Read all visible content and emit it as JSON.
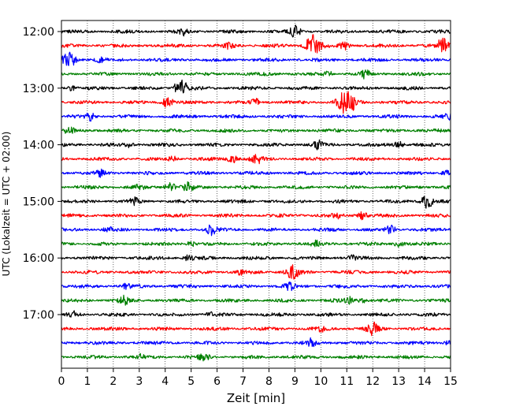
{
  "chart_data": {
    "type": "line",
    "title": "",
    "xlabel": "Zeit  [min]",
    "ylabel": "UTC (Lokalzeit = UTC + 02:00)",
    "xlim": [
      0,
      15
    ],
    "x_ticks": [
      0,
      1,
      2,
      3,
      4,
      5,
      6,
      7,
      8,
      9,
      10,
      11,
      12,
      13,
      14,
      15
    ],
    "y_ticks": [
      "12:00",
      "13:00",
      "14:00",
      "15:00",
      "16:00",
      "17:00"
    ],
    "y_tick_trace_index": [
      0,
      4,
      8,
      12,
      16,
      20
    ],
    "grid": "vertical dotted",
    "trace_interval_min": 15,
    "trace_start": "12:00",
    "trace_count": 24,
    "color_cycle": [
      "#000000",
      "#ff0000",
      "#0000ff",
      "#008000"
    ],
    "traces": [
      {
        "start": "12:00",
        "events": [
          {
            "t": 9.0,
            "amp": 0.7
          },
          {
            "t": 4.7,
            "amp": 0.4
          }
        ]
      },
      {
        "start": "12:15",
        "events": [
          {
            "t": 9.7,
            "amp": 1.4
          },
          {
            "t": 14.7,
            "amp": 0.9
          },
          {
            "t": 10.9,
            "amp": 0.5
          },
          {
            "t": 6.5,
            "amp": 0.4
          }
        ]
      },
      {
        "start": "12:30",
        "events": [
          {
            "t": 0.3,
            "amp": 1.0
          },
          {
            "t": 1.5,
            "amp": 0.3
          }
        ]
      },
      {
        "start": "12:45",
        "events": [
          {
            "t": 11.7,
            "amp": 0.5
          },
          {
            "t": 10.3,
            "amp": 0.3
          }
        ]
      },
      {
        "start": "13:00",
        "events": [
          {
            "t": 4.6,
            "amp": 1.1
          },
          {
            "t": 0.4,
            "amp": 0.3
          }
        ]
      },
      {
        "start": "13:15",
        "events": [
          {
            "t": 11.0,
            "amp": 1.7
          },
          {
            "t": 4.1,
            "amp": 0.7
          },
          {
            "t": 7.5,
            "amp": 0.4
          }
        ]
      },
      {
        "start": "13:30",
        "events": [
          {
            "t": 1.1,
            "amp": 0.5
          },
          {
            "t": 14.9,
            "amp": 0.3
          }
        ]
      },
      {
        "start": "13:45",
        "events": [
          {
            "t": 0.3,
            "amp": 0.5
          }
        ]
      },
      {
        "start": "14:00",
        "events": [
          {
            "t": 9.9,
            "amp": 0.5
          },
          {
            "t": 13.0,
            "amp": 0.4
          },
          {
            "t": 2.6,
            "amp": 0.3
          }
        ]
      },
      {
        "start": "14:15",
        "events": [
          {
            "t": 7.5,
            "amp": 0.7
          },
          {
            "t": 6.6,
            "amp": 0.5
          },
          {
            "t": 4.3,
            "amp": 0.3
          }
        ]
      },
      {
        "start": "14:30",
        "events": [
          {
            "t": 1.5,
            "amp": 0.4
          },
          {
            "t": 14.8,
            "amp": 0.3
          }
        ]
      },
      {
        "start": "14:45",
        "events": [
          {
            "t": 4.2,
            "amp": 0.6
          },
          {
            "t": 4.9,
            "amp": 0.6
          },
          {
            "t": 3.0,
            "amp": 0.3
          }
        ]
      },
      {
        "start": "15:00",
        "events": [
          {
            "t": 14.1,
            "amp": 0.9
          },
          {
            "t": 2.8,
            "amp": 0.4
          }
        ]
      },
      {
        "start": "15:15",
        "events": [
          {
            "t": 11.6,
            "amp": 0.5
          },
          {
            "t": 10.6,
            "amp": 0.3
          }
        ]
      },
      {
        "start": "15:30",
        "events": [
          {
            "t": 5.8,
            "amp": 0.7
          },
          {
            "t": 12.7,
            "amp": 0.5
          },
          {
            "t": 1.8,
            "amp": 0.3
          }
        ]
      },
      {
        "start": "15:45",
        "events": [
          {
            "t": 13.0,
            "amp": 0.4
          },
          {
            "t": 5.0,
            "amp": 0.3
          },
          {
            "t": 9.8,
            "amp": 0.3
          }
        ]
      },
      {
        "start": "16:00",
        "events": [
          {
            "t": 4.9,
            "amp": 0.4
          },
          {
            "t": 11.2,
            "amp": 0.3
          }
        ]
      },
      {
        "start": "16:15",
        "events": [
          {
            "t": 8.9,
            "amp": 0.9
          },
          {
            "t": 6.9,
            "amp": 0.3
          }
        ]
      },
      {
        "start": "16:30",
        "events": [
          {
            "t": 8.8,
            "amp": 0.5
          },
          {
            "t": 2.5,
            "amp": 0.3
          }
        ]
      },
      {
        "start": "16:45",
        "events": [
          {
            "t": 2.4,
            "amp": 0.5
          },
          {
            "t": 11.1,
            "amp": 0.4
          },
          {
            "t": 11.6,
            "amp": 0.3
          }
        ]
      },
      {
        "start": "17:00",
        "events": [
          {
            "t": 0.5,
            "amp": 0.4
          },
          {
            "t": 5.7,
            "amp": 0.3
          }
        ]
      },
      {
        "start": "17:15",
        "events": [
          {
            "t": 12.0,
            "amp": 0.8
          },
          {
            "t": 10.0,
            "amp": 0.3
          }
        ]
      },
      {
        "start": "17:30",
        "events": [
          {
            "t": 9.6,
            "amp": 0.5
          },
          {
            "t": 14.9,
            "amp": 0.3
          }
        ]
      },
      {
        "start": "17:45",
        "events": [
          {
            "t": 5.5,
            "amp": 0.5
          },
          {
            "t": 3.1,
            "amp": 0.3
          }
        ]
      }
    ]
  }
}
